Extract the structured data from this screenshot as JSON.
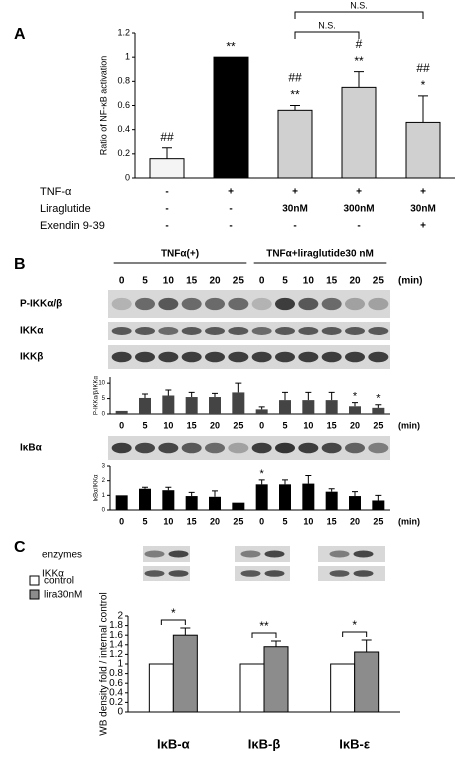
{
  "chart_data": [
    {
      "type": "bar",
      "panel": "A",
      "ylabel": "Ratio of NF-κB activation",
      "categories": [
        null,
        null,
        null,
        null,
        null
      ],
      "values": [
        0.16,
        1,
        0.56,
        0.75,
        0.46
      ],
      "errors": [
        0.09,
        0,
        0.04,
        0.13,
        0.22
      ],
      "colors": [
        "#f4f4f4",
        "#000000",
        "#d0d0d0",
        "#d0d0d0",
        "#d0d0d0"
      ],
      "annotations": [
        [
          "##"
        ],
        [
          "**"
        ],
        [
          "##",
          "**"
        ],
        [
          "#",
          "**"
        ],
        [
          "##",
          "*"
        ]
      ],
      "ns_labels": [
        "N.S.",
        "N.S."
      ],
      "treatments": [
        {
          "label": "TNF-α",
          "values": [
            "-",
            "+",
            "+",
            "+",
            "+"
          ]
        },
        {
          "label": "Liraglutide",
          "values": [
            "-",
            "-",
            "30nM",
            "300nM",
            "30nM"
          ]
        },
        {
          "label": "Exendin 9-39",
          "values": [
            "-",
            "-",
            "-",
            "-",
            "+"
          ]
        }
      ],
      "ylim": [
        0,
        1.2
      ],
      "yticks": [
        0,
        0.2,
        0.4,
        0.6,
        0.8,
        1,
        1.2
      ]
    },
    {
      "type": "bar",
      "ylabel": "P-IKKα/β/IKKα",
      "xlabel": "(min)",
      "categories": [
        0,
        5,
        10,
        15,
        20,
        25,
        0,
        5,
        10,
        15,
        20,
        25
      ],
      "values": [
        1,
        5.2,
        6,
        5.5,
        5.5,
        7,
        1.5,
        4.5,
        4.5,
        4.5,
        2.5,
        2
      ],
      "errors": [
        0,
        1.3,
        1.8,
        1.5,
        1.2,
        3,
        0.8,
        2.5,
        2.5,
        2.5,
        1.2,
        1
      ],
      "color": "#444444",
      "annotations": [
        null,
        null,
        null,
        null,
        null,
        null,
        null,
        null,
        null,
        null,
        "*",
        "*"
      ],
      "ylim": [
        0,
        12
      ],
      "yticks": [
        0,
        5,
        10
      ]
    },
    {
      "type": "bar",
      "ylabel": "IκBα/IKKα",
      "xlabel": "(min)",
      "categories": [
        0,
        5,
        10,
        15,
        20,
        25,
        0,
        5,
        10,
        15,
        20,
        25
      ],
      "values": [
        1,
        1.45,
        1.35,
        0.95,
        0.9,
        0.5,
        1.75,
        1.75,
        1.8,
        1.25,
        0.95,
        0.65
      ],
      "errors": [
        0,
        0.1,
        0.2,
        0.25,
        0.4,
        0,
        0.3,
        0.3,
        0.55,
        0.2,
        0.3,
        0.35
      ],
      "color": "#000000",
      "annotations": [
        null,
        null,
        null,
        null,
        null,
        null,
        "*",
        null,
        null,
        null,
        null,
        null
      ],
      "ylim": [
        0,
        3
      ],
      "yticks": [
        0,
        1,
        2,
        3
      ]
    },
    {
      "type": "grouped-bar",
      "panel": "C",
      "ylabel": "WB density fold / internal control",
      "categories": [
        "IκB-α",
        "IκB-β",
        "IκB-ε"
      ],
      "series": [
        {
          "name": "control",
          "color": "#ffffff",
          "values": [
            1,
            1,
            1
          ]
        },
        {
          "name": "lira30nM",
          "color": "#8c8c8c",
          "values": [
            1.6,
            1.36,
            1.25
          ],
          "errors": [
            0.15,
            0.12,
            0.25
          ]
        }
      ],
      "annotations": [
        "*",
        "**",
        "*"
      ],
      "ylim": [
        0,
        2
      ],
      "yticks": [
        0,
        0.2,
        0.4,
        0.6,
        0.8,
        1,
        1.2,
        1.4,
        1.6,
        1.8,
        2
      ]
    }
  ],
  "panel_b": {
    "label": "B",
    "groups": [
      "TNFα(+)",
      "TNFα+liraglutide30 nM"
    ],
    "lanes": [
      0,
      5,
      10,
      15,
      20,
      25,
      0,
      5,
      10,
      15,
      20,
      25
    ],
    "unit": "(min)",
    "blots": [
      "P-IKKα/β",
      "IKKα",
      "IKKβ",
      "IκBα"
    ]
  },
  "panel_c": {
    "blots": [
      "enzymes",
      "IKKα"
    ]
  }
}
